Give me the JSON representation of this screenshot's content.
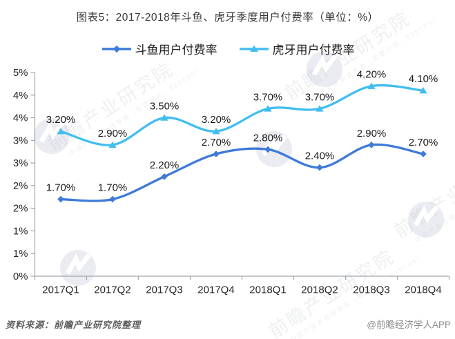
{
  "title": "图表5：2017-2018年斗鱼、虎牙季度用户付费率（单位：%）",
  "legend": {
    "items": [
      {
        "label": "斗鱼用户付费率",
        "color": "#3D7AD9",
        "marker": "diamond"
      },
      {
        "label": "虎牙用户付费率",
        "color": "#41BEF0",
        "marker": "triangle"
      }
    ]
  },
  "chart_data": {
    "type": "line",
    "title": "图表5：2017-2018年斗鱼、虎牙季度用户付费率（单位：%）",
    "categories": [
      "2017Q1",
      "2017Q2",
      "2017Q3",
      "2017Q4",
      "2018Q1",
      "2018Q2",
      "2018Q3",
      "2018Q4"
    ],
    "series": [
      {
        "name": "斗鱼用户付费率",
        "color": "#3D7AD9",
        "marker": "diamond",
        "values": [
          1.7,
          1.7,
          2.2,
          2.7,
          2.8,
          2.4,
          2.9,
          2.7
        ],
        "data_labels": [
          "1.70%",
          "1.70%",
          "2.20%",
          "2.70%",
          "2.80%",
          "2.40%",
          "2.90%",
          "2.70%"
        ]
      },
      {
        "name": "虎牙用户付费率",
        "color": "#41BEF0",
        "marker": "triangle",
        "values": [
          3.2,
          2.9,
          3.5,
          3.2,
          3.7,
          3.7,
          4.2,
          4.1
        ],
        "data_labels": [
          "3.20%",
          "2.90%",
          "3.50%",
          "3.20%",
          "3.70%",
          "3.70%",
          "4.20%",
          "4.10%"
        ]
      }
    ],
    "ylabel": "",
    "xlabel": "",
    "unit": "%",
    "ylim": [
      0,
      4.5
    ],
    "y_tick_step": 0.5,
    "y_tick_labels_top_to_bottom": [
      "5%",
      "4%",
      "4%",
      "3%",
      "3%",
      "2%",
      "2%",
      "1%",
      "1%",
      "0%"
    ],
    "grid": false,
    "smooth": true,
    "legend_position": "top"
  },
  "footer": {
    "source": "资料来源：前瞻产业研究院整理",
    "credit": "@前瞻经济学人APP"
  },
  "watermark": {
    "brand": "前瞻产业研究院",
    "subtext": "中国产业咨询领导者（股票代码：839599）"
  }
}
